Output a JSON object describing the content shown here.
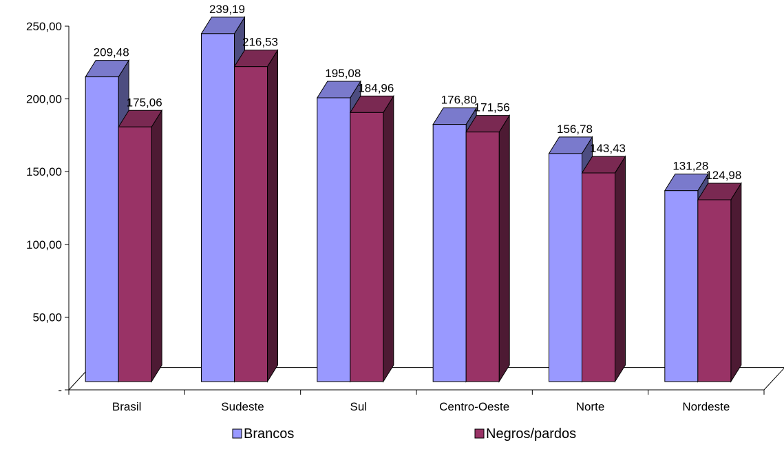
{
  "chart_data": {
    "type": "bar",
    "style": "3d-clustered-column",
    "categories": [
      "Brasil",
      "Sudeste",
      "Sul",
      "Centro-Oeste",
      "Norte",
      "Nordeste"
    ],
    "series": [
      {
        "name": "Brancos",
        "values": [
          209.48,
          239.19,
          195.08,
          176.8,
          156.78,
          131.28
        ],
        "value_labels": [
          "209,48",
          "239,19",
          "195,08",
          "176,80",
          "156,78",
          "131,28"
        ],
        "color": "#9999ff",
        "side_color": "#4d4d80",
        "top_color": "#7a7acc"
      },
      {
        "name": "Negros/pardos",
        "values": [
          175.06,
          216.53,
          184.96,
          171.56,
          143.43,
          124.98
        ],
        "value_labels": [
          "175,06",
          "216,53",
          "184,96",
          "171,56",
          "143,43",
          "124,98"
        ],
        "color": "#993366",
        "side_color": "#4d1a33",
        "top_color": "#7a2952"
      }
    ],
    "ylim": [
      0,
      250
    ],
    "yticks": [
      0,
      50,
      100,
      150,
      200,
      250
    ],
    "ytick_labels": [
      "-",
      "50,00",
      "100,00",
      "150,00",
      "200,00",
      "250,00"
    ],
    "grid": false,
    "legend": "bottom"
  }
}
